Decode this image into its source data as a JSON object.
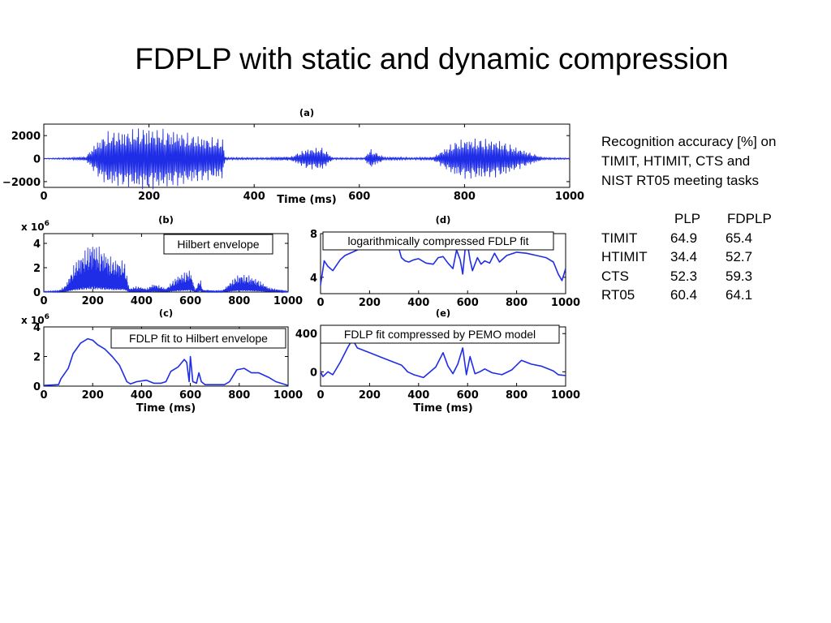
{
  "slide": {
    "title": "FDPLP with static and dynamic compression"
  },
  "side_text": {
    "lines": [
      "Recognition accuracy [%] on",
      "TIMIT, HTIMIT, CTS and",
      "NIST RT05 meeting tasks"
    ]
  },
  "accuracy_table": {
    "headers": [
      "",
      "PLP",
      "FDPLP"
    ],
    "rows": [
      [
        "TIMIT",
        "64.9",
        "65.4"
      ],
      [
        "HTIMIT",
        "34.4",
        "52.7"
      ],
      [
        "CTS",
        "52.3",
        "59.3"
      ],
      [
        "RT05",
        "60.4",
        "64.1"
      ]
    ]
  },
  "colors": {
    "signal": "#1f2ee6",
    "axis": "#000000",
    "annotation_border": "#000000"
  },
  "chart_data": [
    {
      "type": "line",
      "title": "(a)",
      "xlabel": "Time (ms)",
      "xlim": [
        0,
        1000
      ],
      "ylim": [
        -2500,
        3000
      ],
      "xticks": [
        0,
        200,
        400,
        600,
        800,
        1000
      ],
      "xtick_labels": [
        "0",
        "200",
        "400",
        "600",
        "800",
        "1000"
      ],
      "yticks": [
        -2000,
        0,
        2000
      ],
      "ytick_labels": [
        "−2000",
        "0",
        "2000"
      ],
      "series": [
        {
          "style": "oscillating-waveform",
          "envelope": {
            "x": [
              0,
              50,
              80,
              100,
              120,
              150,
              190,
              250,
              300,
              340,
              345,
              420,
              470,
              500,
              530,
              550,
              610,
              620,
              630,
              650,
              660,
              700,
              740,
              780,
              800,
              830,
              870,
              900,
              950,
              1000
            ],
            "y": [
              30,
              80,
              200,
              1500,
              2400,
              2500,
              2800,
              2500,
              2000,
              1800,
              100,
              80,
              200,
              900,
              1000,
              80,
              80,
              900,
              600,
              100,
              150,
              80,
              150,
              1500,
              1800,
              1800,
              1600,
              1000,
              100,
              50
            ]
          }
        }
      ]
    },
    {
      "type": "line",
      "title": "(b)",
      "y_exponent": "x 10",
      "y_exponent_power": "6",
      "xlim": [
        0,
        1000
      ],
      "ylim": [
        0,
        4.8
      ],
      "xticks": [
        0,
        200,
        400,
        600,
        800,
        1000
      ],
      "xtick_labels": [
        "0",
        "200",
        "400",
        "600",
        "800",
        "1000"
      ],
      "yticks": [
        0,
        2,
        4
      ],
      "ytick_labels": [
        "0",
        "2",
        "4"
      ],
      "annotation": "Hilbert envelope",
      "series": [
        {
          "style": "spiky-envelope",
          "envelope": {
            "x": [
              0,
              60,
              90,
              130,
              180,
              200,
              250,
              280,
              330,
              350,
              380,
              420,
              450,
              480,
              500,
              530,
              550,
              600,
              610,
              620,
              640,
              650,
              700,
              730,
              780,
              800,
              840,
              880,
              920,
              1000
            ],
            "y": [
              0.05,
              0.1,
              0.6,
              2.6,
              3.8,
              4.2,
              3.4,
              2.8,
              2.6,
              0.3,
              0.5,
              0.3,
              0.7,
              0.5,
              0.3,
              1.0,
              1.4,
              1.9,
              1.0,
              0.2,
              1.2,
              0.2,
              0.1,
              0.1,
              1.2,
              1.5,
              1.4,
              1.0,
              0.4,
              0.05
            ]
          }
        }
      ]
    },
    {
      "type": "line",
      "title": "(c)",
      "xlabel": "Time (ms)",
      "y_exponent": "x 10",
      "y_exponent_power": "6",
      "xlim": [
        0,
        1000
      ],
      "ylim": [
        0,
        4
      ],
      "xticks": [
        0,
        200,
        400,
        600,
        800,
        1000
      ],
      "xtick_labels": [
        "0",
        "200",
        "400",
        "600",
        "800",
        "1000"
      ],
      "yticks": [
        0,
        2,
        4
      ],
      "ytick_labels": [
        "0",
        "2",
        "4"
      ],
      "annotation": "FDLP fit to Hilbert envelope",
      "series": [
        {
          "x": [
            0,
            60,
            70,
            100,
            120,
            150,
            180,
            200,
            220,
            250,
            280,
            310,
            340,
            355,
            380,
            420,
            450,
            480,
            500,
            520,
            550,
            575,
            585,
            595,
            600,
            610,
            625,
            635,
            645,
            660,
            700,
            740,
            760,
            790,
            820,
            850,
            880,
            920,
            950,
            1000
          ],
          "y": [
            0.05,
            0.1,
            0.5,
            1.2,
            2.2,
            2.9,
            3.2,
            3.1,
            2.8,
            2.5,
            2.0,
            1.4,
            0.3,
            0.15,
            0.3,
            0.4,
            0.2,
            0.2,
            0.3,
            1.0,
            1.3,
            1.8,
            1.6,
            0.3,
            2.0,
            0.3,
            0.2,
            0.9,
            0.3,
            0.1,
            0.1,
            0.1,
            0.3,
            1.1,
            1.2,
            0.9,
            0.9,
            0.6,
            0.3,
            0.05
          ]
        }
      ]
    },
    {
      "type": "line",
      "title": "(d)",
      "xlim": [
        0,
        1000
      ],
      "ylim": [
        2.5,
        8
      ],
      "xticks": [
        0,
        200,
        400,
        600,
        800,
        1000
      ],
      "xtick_labels": [
        "0",
        "200",
        "400",
        "600",
        "800",
        "1000"
      ],
      "yticks": [
        4,
        8
      ],
      "ytick_labels": [
        "4",
        "8"
      ],
      "annotation": "logarithmically compressed FDLP fit",
      "series": [
        {
          "x": [
            0,
            15,
            30,
            50,
            80,
            100,
            130,
            160,
            200,
            250,
            300,
            320,
            330,
            345,
            360,
            380,
            400,
            430,
            460,
            480,
            500,
            520,
            540,
            555,
            570,
            580,
            590,
            600,
            610,
            620,
            640,
            655,
            670,
            690,
            710,
            730,
            760,
            800,
            840,
            880,
            920,
            950,
            970,
            985,
            1000
          ],
          "y": [
            3.3,
            5.5,
            5.0,
            4.6,
            5.6,
            6.0,
            6.3,
            6.6,
            6.8,
            6.8,
            6.7,
            6.6,
            5.8,
            5.5,
            5.4,
            5.6,
            5.7,
            5.3,
            5.2,
            5.8,
            5.9,
            5.3,
            4.8,
            6.5,
            5.6,
            4.3,
            6.6,
            7.0,
            5.6,
            4.6,
            5.8,
            5.2,
            5.5,
            5.3,
            6.2,
            5.4,
            6.0,
            6.3,
            6.2,
            6.0,
            5.8,
            5.4,
            4.3,
            3.7,
            4.8
          ]
        }
      ]
    },
    {
      "type": "line",
      "title": "(e)",
      "xlabel": "Time (ms)",
      "xlim": [
        0,
        1000
      ],
      "ylim": [
        -150,
        470
      ],
      "xticks": [
        0,
        200,
        400,
        600,
        800,
        1000
      ],
      "xtick_labels": [
        "0",
        "200",
        "400",
        "600",
        "800",
        "1000"
      ],
      "yticks": [
        0,
        400
      ],
      "ytick_labels": [
        "0",
        "400"
      ],
      "annotation": "FDLP fit compressed by PEMO model",
      "series": [
        {
          "x": [
            0,
            10,
            30,
            50,
            80,
            110,
            130,
            150,
            200,
            250,
            300,
            330,
            345,
            355,
            380,
            420,
            470,
            500,
            520,
            540,
            560,
            580,
            595,
            610,
            630,
            650,
            670,
            700,
            740,
            780,
            820,
            860,
            900,
            950,
            970,
            1000
          ],
          "y": [
            0,
            -50,
            0,
            -30,
            100,
            250,
            340,
            250,
            200,
            150,
            100,
            70,
            30,
            0,
            -30,
            -60,
            50,
            200,
            60,
            -20,
            80,
            250,
            -30,
            160,
            -20,
            0,
            30,
            -10,
            -30,
            20,
            120,
            80,
            60,
            10,
            -30,
            -40
          ]
        }
      ]
    }
  ]
}
